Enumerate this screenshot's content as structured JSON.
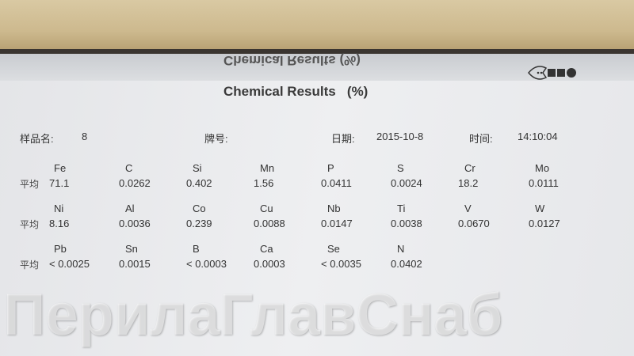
{
  "document": {
    "mirrored_title": "Chemical Results (%)",
    "title": "Chemical Results",
    "unit": "(%)",
    "header": {
      "sample_label": "样品名:",
      "sample_value": "8",
      "grade_label": "牌号:",
      "grade_value": "",
      "date_label": "日期:",
      "date_value": "2015-10-8",
      "time_label": "时间:",
      "time_value": "14:10:04"
    },
    "avg_label": "平均",
    "rows": [
      [
        {
          "el": "Fe",
          "val": "71.1"
        },
        {
          "el": "C",
          "val": "0.0262"
        },
        {
          "el": "Si",
          "val": "0.402"
        },
        {
          "el": "Mn",
          "val": "1.56"
        },
        {
          "el": "P",
          "val": "0.0411"
        },
        {
          "el": "S",
          "val": "0.0024"
        },
        {
          "el": "Cr",
          "val": "18.2"
        },
        {
          "el": "Mo",
          "val": "0.0111"
        }
      ],
      [
        {
          "el": "Ni",
          "val": "8.16"
        },
        {
          "el": "Al",
          "val": "0.0036"
        },
        {
          "el": "Co",
          "val": "0.239"
        },
        {
          "el": "Cu",
          "val": "0.0088"
        },
        {
          "el": "Nb",
          "val": "0.0147"
        },
        {
          "el": "Ti",
          "val": "0.0038"
        },
        {
          "el": "V",
          "val": "0.0670"
        },
        {
          "el": "W",
          "val": "0.0127"
        }
      ],
      [
        {
          "el": "Pb",
          "val": "< 0.0025"
        },
        {
          "el": "Sn",
          "val": "0.0015"
        },
        {
          "el": "B",
          "val": "< 0.0003"
        },
        {
          "el": "Ca",
          "val": "0.0003"
        },
        {
          "el": "Se",
          "val": "< 0.0035"
        },
        {
          "el": "N",
          "val": "0.0402"
        }
      ]
    ]
  },
  "watermark": "ПерилаГлавСнаб",
  "logo": "fish-logo-icon"
}
